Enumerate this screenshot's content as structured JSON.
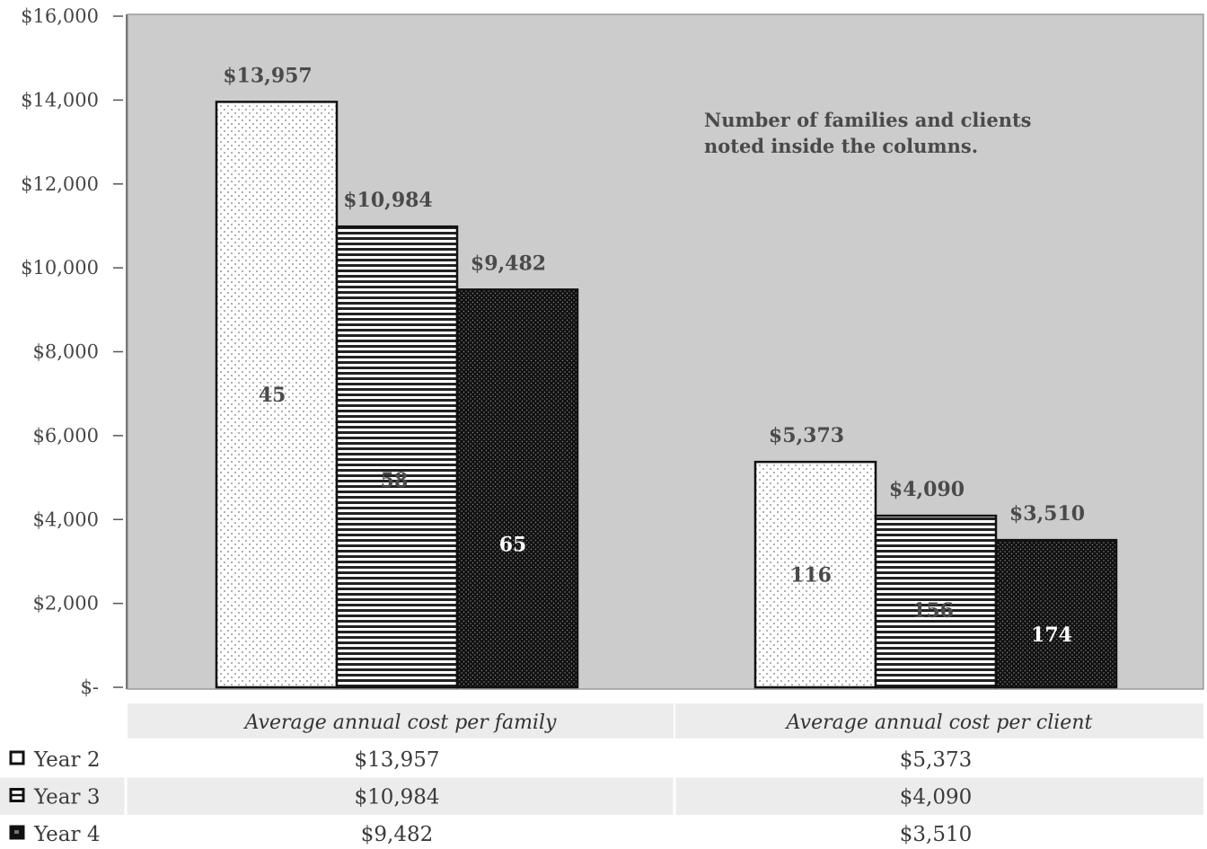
{
  "chart_data": {
    "type": "bar",
    "categories": [
      "Average annual cost per family",
      "Average annual cost per client"
    ],
    "series": [
      {
        "name": "Year 2",
        "values": [
          13957,
          5373
        ],
        "value_labels": [
          "$13,957",
          "$5,373"
        ],
        "counts": [
          45,
          116
        ],
        "pattern": "dots-on-white",
        "count_color": "#4a4a4a"
      },
      {
        "name": "Year 3",
        "values": [
          10984,
          4090
        ],
        "value_labels": [
          "$10,984",
          "$4,090"
        ],
        "counts": [
          58,
          156
        ],
        "pattern": "horizontal-stripes",
        "count_color": "#4a4a4a"
      },
      {
        "name": "Year 4",
        "values": [
          9482,
          3510
        ],
        "value_labels": [
          "$9,482",
          "$3,510"
        ],
        "counts": [
          65,
          174
        ],
        "pattern": "white-dots-on-black",
        "count_color": "#ffffff"
      }
    ],
    "y_ticks": [
      0,
      2000,
      4000,
      6000,
      8000,
      10000,
      12000,
      14000,
      16000
    ],
    "y_tick_labels": [
      "$-",
      "$2,000",
      "$4,000",
      "$6,000",
      "$8,000",
      "$10,000",
      "$12,000",
      "$14,000",
      "$16,000"
    ],
    "ylim": [
      0,
      16000
    ],
    "annotation": "Number of families and clients noted inside the columns.",
    "grid": false,
    "legend": "data table below chart",
    "data_table": {
      "headers": [
        "Average annual cost per family",
        "Average annual cost per client"
      ],
      "rows": [
        {
          "label": "Year 2",
          "cells": [
            "$13,957",
            "$5,373"
          ],
          "icon": "year2-pattern-icon"
        },
        {
          "label": "Year 3",
          "cells": [
            "$10,984",
            "$4,090"
          ],
          "icon": "year3-pattern-icon"
        },
        {
          "label": "Year 4",
          "cells": [
            "$9,482",
            "$3,510"
          ],
          "icon": "year4-pattern-icon"
        }
      ]
    },
    "colors": {
      "plot_background": "#cccccc",
      "table_band": "#ececec",
      "bar_outline": "#111111"
    }
  }
}
